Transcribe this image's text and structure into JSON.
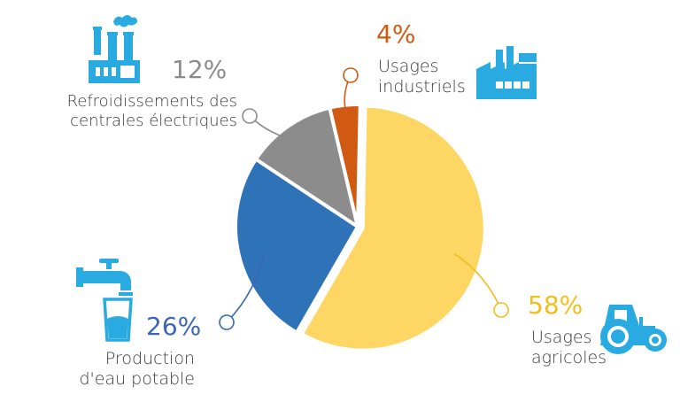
{
  "chart_data": {
    "type": "pie",
    "slices": [
      {
        "label_lines": [
          "Usages",
          "agricoles"
        ],
        "percent_text": "58%",
        "value": 58,
        "color": "#FDD663",
        "pct_color": "#F2BE1A",
        "icon": "tractor-icon"
      },
      {
        "label_lines": [
          "Production",
          "d'eau potable"
        ],
        "percent_text": "26%",
        "value": 26,
        "color": "#2E72B8",
        "pct_color": "#3A66B5",
        "icon": "water-tap-glass-icon"
      },
      {
        "label_lines": [
          "Refroidissements des",
          "centrales électriques"
        ],
        "percent_text": "12%",
        "value": 12,
        "color": "#8C8C8C",
        "pct_color": "#8C8C8C",
        "icon": "power-plant-icon"
      },
      {
        "label_lines": [
          "Usages",
          "industriels"
        ],
        "percent_text": "4%",
        "value": 4,
        "color": "#D05A12",
        "pct_color": "#D05A12",
        "icon": "factory-icon"
      }
    ],
    "icon_color": "#29ABE2"
  }
}
